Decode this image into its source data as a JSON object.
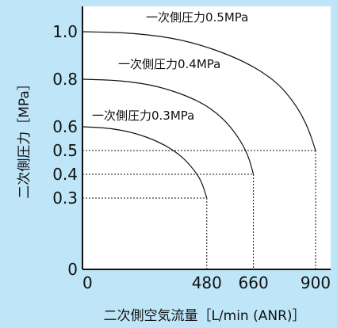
{
  "chart_data": {
    "type": "line",
    "title": "",
    "xlabel": "二次側空気流量［L/min (ANR)］",
    "ylabel": "二次側圧力［MPa］",
    "xlim": [
      0,
      900
    ],
    "ylim": [
      0,
      1.0
    ],
    "x_ticks": [
      "0",
      "480",
      "660",
      "900"
    ],
    "y_ticks": [
      "0",
      "0.3",
      "0.4",
      "0.5",
      "0.6",
      "0.8",
      "1.0"
    ],
    "grid": false,
    "legend": "none",
    "series": [
      {
        "name": "一次側圧力0.3MPa",
        "x": [
          0,
          100,
          200,
          300,
          380,
          430,
          460,
          480
        ],
        "y": [
          0.6,
          0.595,
          0.575,
          0.535,
          0.48,
          0.42,
          0.37,
          0.3
        ]
      },
      {
        "name": "一次側圧力0.4MPa",
        "x": [
          0,
          150,
          300,
          450,
          540,
          600,
          640,
          660
        ],
        "y": [
          0.8,
          0.795,
          0.77,
          0.71,
          0.64,
          0.56,
          0.48,
          0.4
        ]
      },
      {
        "name": "一次側圧力0.5MPa",
        "x": [
          0,
          200,
          400,
          600,
          740,
          820,
          870,
          900
        ],
        "y": [
          1.0,
          0.995,
          0.965,
          0.89,
          0.8,
          0.7,
          0.6,
          0.5
        ]
      }
    ],
    "reference_points": [
      {
        "x": 480,
        "y": 0.3
      },
      {
        "x": 660,
        "y": 0.4
      },
      {
        "x": 900,
        "y": 0.5
      }
    ],
    "colors": {
      "background": "#bfe6f8",
      "plot_area": "#ffffff",
      "line": "#111111",
      "axis": "#111111"
    }
  }
}
